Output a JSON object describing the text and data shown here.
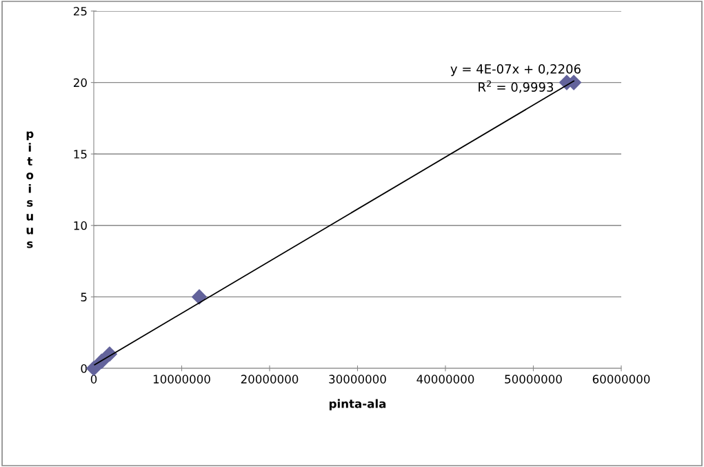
{
  "chart_data": {
    "type": "scatter",
    "xlabel": "pinta-ala",
    "ylabel": "pitoisuus",
    "series": [
      {
        "color": "#63639b",
        "marker": "diamond",
        "x": [
          0,
          900000,
          1800000,
          12000000,
          53800000,
          54600000
        ],
        "values": [
          0,
          0.5,
          1,
          5,
          20,
          20
        ]
      },
      {
        "type": "line",
        "color": "#000000",
        "x": [
          100000,
          54600000
        ],
        "values": [
          0.25,
          20.1
        ]
      }
    ],
    "annotations": [
      "y = 4E-07x + 0,2206",
      "R$^{2}$ = 0,9993"
    ],
    "xlim": [
      0,
      60000000
    ],
    "xticks": [
      0,
      10000000,
      20000000,
      30000000,
      40000000,
      50000000,
      60000000
    ],
    "ylim": [
      0,
      25
    ],
    "yticks": [
      0,
      5,
      10,
      15,
      20,
      25
    ],
    "grid": "y",
    "legend": false
  }
}
